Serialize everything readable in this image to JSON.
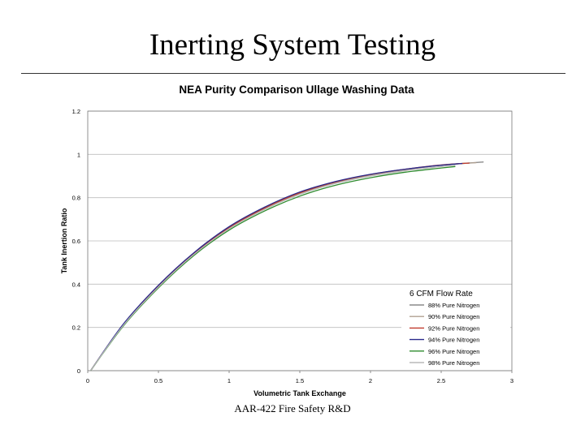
{
  "slide": {
    "title": "Inerting System Testing",
    "footer": "AAR-422 Fire Safety R&D"
  },
  "chart_data": {
    "type": "line",
    "title": "NEA Purity Comparison Ullage Washing Data",
    "xlabel": "Volumetric Tank Exchange",
    "ylabel": "Tank Inertion Ratio",
    "xlim": [
      0,
      3
    ],
    "ylim": [
      0,
      1.2
    ],
    "x_ticks": [
      "0",
      "0.5",
      "1",
      "1.5",
      "2",
      "2.5",
      "3"
    ],
    "y_ticks": [
      "0",
      "0.2",
      "0.4",
      "0.6",
      "0.8",
      "1",
      "1.2"
    ],
    "grid": "horizontal",
    "legend_title": "6 CFM Flow Rate",
    "legend_position": "bottom-right",
    "series": [
      {
        "name": "88% Pure Nitrogen",
        "color": "#8a8a8a",
        "x": [
          0.02,
          0.25,
          0.5,
          0.75,
          1.0,
          1.25,
          1.5,
          1.75,
          2.0,
          2.25,
          2.5,
          2.8
        ],
        "y": [
          0.0,
          0.21,
          0.39,
          0.54,
          0.66,
          0.75,
          0.82,
          0.87,
          0.905,
          0.93,
          0.95,
          0.965
        ]
      },
      {
        "name": "90% Pure Nitrogen",
        "color": "#b0a090",
        "x": [
          0.02,
          0.25,
          0.5,
          0.75,
          1.0,
          1.25,
          1.5,
          1.75,
          2.0,
          2.25,
          2.5,
          2.75
        ],
        "y": [
          0.0,
          0.21,
          0.39,
          0.54,
          0.66,
          0.75,
          0.82,
          0.87,
          0.905,
          0.93,
          0.95,
          0.962
        ]
      },
      {
        "name": "92% Pure Nitrogen",
        "color": "#c0392b",
        "x": [
          0.02,
          0.25,
          0.5,
          0.75,
          1.0,
          1.25,
          1.5,
          1.75,
          2.0,
          2.25,
          2.5,
          2.7
        ],
        "y": [
          0.0,
          0.212,
          0.392,
          0.542,
          0.662,
          0.752,
          0.822,
          0.872,
          0.907,
          0.932,
          0.951,
          0.96
        ]
      },
      {
        "name": "94% Pure Nitrogen",
        "color": "#2a2a8c",
        "x": [
          0.02,
          0.25,
          0.5,
          0.75,
          1.0,
          1.25,
          1.5,
          1.75,
          2.0,
          2.25,
          2.5,
          2.65
        ],
        "y": [
          0.0,
          0.214,
          0.395,
          0.545,
          0.666,
          0.756,
          0.826,
          0.874,
          0.908,
          0.932,
          0.95,
          0.958
        ]
      },
      {
        "name": "96% Pure Nitrogen",
        "color": "#2e8b2e",
        "x": [
          0.02,
          0.25,
          0.5,
          0.75,
          1.0,
          1.25,
          1.5,
          1.75,
          2.0,
          2.25,
          2.5,
          2.6
        ],
        "y": [
          0.0,
          0.205,
          0.383,
          0.532,
          0.65,
          0.738,
          0.807,
          0.857,
          0.892,
          0.918,
          0.937,
          0.944
        ]
      },
      {
        "name": "98% Pure Nitrogen",
        "color": "#b8b8b8",
        "x": [
          0.02,
          0.25,
          0.5,
          0.75,
          1.0,
          1.25,
          1.5,
          1.75,
          2.0,
          2.25,
          2.5,
          2.6
        ],
        "y": [
          0.0,
          0.208,
          0.387,
          0.537,
          0.656,
          0.745,
          0.815,
          0.865,
          0.9,
          0.925,
          0.944,
          0.95
        ]
      }
    ]
  }
}
